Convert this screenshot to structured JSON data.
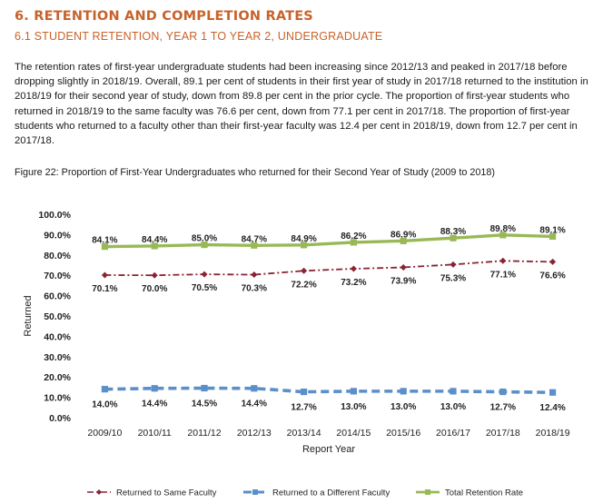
{
  "section_title": "6. RETENTION AND COMPLETION RATES",
  "subsection_title": "6.1 STUDENT RETENTION, YEAR 1 TO YEAR 2, UNDERGRADUATE",
  "body_paragraph": "The retention rates of first-year undergraduate students had been increasing since 2012/13 and peaked in 2017/18 before dropping slightly in 2018/19. Overall, 89.1 per cent of students in their first year of study in 2017/18 returned to the institution in 2018/19 for their second year of study, down from 89.8 per cent in the prior cycle. The proportion of first-year students who returned in 2018/19 to the same faculty was 76.6 per cent, down from 77.1 per cent in 2017/18. The proportion of first-year students who returned to a faculty other than their first-year faculty was 12.4 per cent in 2018/19, down from 12.7 per cent in 2017/18.",
  "figure_caption": "Figure 22: Proportion of First-Year Undergraduates who returned for their Second Year of Study (2009 to 2018)",
  "chart_data": {
    "type": "line",
    "title": "",
    "xlabel": "Report Year",
    "ylabel": "Returned",
    "categories": [
      "2009/10",
      "2010/11",
      "2011/12",
      "2012/13",
      "2013/14",
      "2014/15",
      "2015/16",
      "2016/17",
      "2017/18",
      "2018/19"
    ],
    "yticks": [
      "0.0%",
      "10.0%",
      "20.0%",
      "30.0%",
      "40.0%",
      "50.0%",
      "60.0%",
      "70.0%",
      "80.0%",
      "90.0%",
      "100.0%"
    ],
    "ylim": [
      0,
      100
    ],
    "grid": false,
    "legend_position": "bottom",
    "series": [
      {
        "name": "Returned to Same Faculty",
        "color": "#8b2332",
        "style": "dash-dot",
        "values": [
          70.1,
          70.0,
          70.5,
          70.3,
          72.2,
          73.2,
          73.9,
          75.3,
          77.1,
          76.6
        ],
        "labels": [
          "70.1%",
          "70.0%",
          "70.5%",
          "70.3%",
          "72.2%",
          "73.2%",
          "73.9%",
          "75.3%",
          "77.1%",
          "76.6%"
        ]
      },
      {
        "name": "Returned to a Different Faculty",
        "color": "#5b8fc9",
        "style": "dashed",
        "values": [
          14.0,
          14.4,
          14.5,
          14.4,
          12.7,
          13.0,
          13.0,
          13.0,
          12.7,
          12.4
        ],
        "labels": [
          "14.0%",
          "14.4%",
          "14.5%",
          "14.4%",
          "12.7%",
          "13.0%",
          "13.0%",
          "13.0%",
          "12.7%",
          "12.4%"
        ]
      },
      {
        "name": "Total Retention Rate",
        "color": "#98b956",
        "style": "solid",
        "values": [
          84.1,
          84.4,
          85.0,
          84.7,
          84.9,
          86.2,
          86.9,
          88.3,
          89.8,
          89.1
        ],
        "labels": [
          "84.1%",
          "84.4%",
          "85.0%",
          "84.7%",
          "84.9%",
          "86.2%",
          "86.9%",
          "88.3%",
          "89.8%",
          "89.1%"
        ]
      }
    ]
  }
}
